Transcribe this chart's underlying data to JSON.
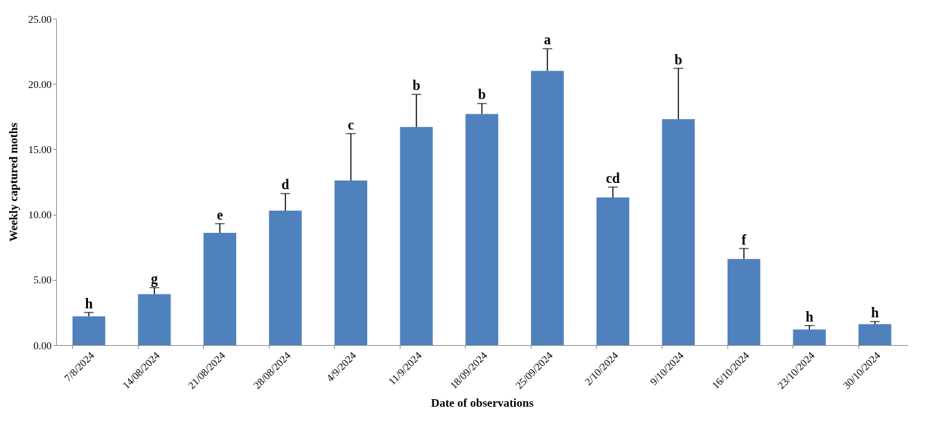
{
  "chart_data": {
    "type": "bar",
    "xlabel": "Date of observations",
    "ylabel": "Weekly captured moths",
    "categories": [
      "7/8/2024",
      "14/08/2024",
      "21/08/2024",
      "28/08/2024",
      "4/9/2024",
      "11/9/2024",
      "18/09/2024",
      "25/09/2024",
      "2/10/2024",
      "9/10/2024",
      "16/10/2024",
      "23/10/2024",
      "30/10/2024"
    ],
    "values": [
      2.2,
      3.9,
      8.6,
      10.3,
      12.6,
      16.7,
      17.7,
      21.0,
      11.3,
      17.3,
      6.6,
      1.2,
      1.6
    ],
    "errors": [
      0.3,
      0.5,
      0.7,
      1.3,
      3.6,
      2.5,
      0.8,
      1.7,
      0.8,
      3.9,
      0.8,
      0.3,
      0.2
    ],
    "color": "#4f81bd",
    "ylim": [
      0,
      25
    ],
    "yticks": [
      {
        "value": 0,
        "label": "0.00"
      },
      {
        "value": 5,
        "label": "5.00"
      },
      {
        "value": 10,
        "label": "10.00"
      },
      {
        "value": 15,
        "label": "15.00"
      },
      {
        "value": 20,
        "label": "20.00"
      },
      {
        "value": 25,
        "label": "25.00"
      }
    ],
    "grid": false,
    "annotations": [
      {
        "text": "h",
        "x": "7/8/2024",
        "y": 2.5
      },
      {
        "text": "g",
        "x": "14/08/2024",
        "y": 4.4
      },
      {
        "text": "e",
        "x": "21/08/2024",
        "y": 9.3
      },
      {
        "text": "d",
        "x": "28/08/2024",
        "y": 11.6
      },
      {
        "text": "c",
        "x": "4/9/2024",
        "y": 16.2
      },
      {
        "text": "b",
        "x": "11/9/2024",
        "y": 19.2
      },
      {
        "text": "b",
        "x": "18/09/2024",
        "y": 18.5
      },
      {
        "text": "a",
        "x": "25/09/2024",
        "y": 22.7
      },
      {
        "text": "cd",
        "x": "2/10/2024",
        "y": 12.1
      },
      {
        "text": "b",
        "x": "9/10/2024",
        "y": 21.2
      },
      {
        "text": "f",
        "x": "16/10/2024",
        "y": 7.4
      },
      {
        "text": "h",
        "x": "23/10/2024",
        "y": 1.5
      },
      {
        "text": "h",
        "x": "30/10/2024",
        "y": 1.8
      }
    ]
  }
}
